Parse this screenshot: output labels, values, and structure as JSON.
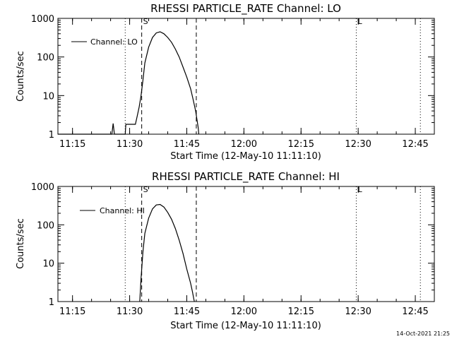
{
  "chart_data": [
    {
      "type": "line",
      "title": "RHESSI PARTICLE_RATE Channel: LO",
      "xlabel": "Start Time (12-May-10 11:11:10)",
      "ylabel": "Counts/sec",
      "yscale": "log",
      "xlim": [
        "11:11:10",
        "12:50:00"
      ],
      "ylim": [
        1,
        1000
      ],
      "xticks": [
        "11:15",
        "11:30",
        "11:45",
        "12:00",
        "12:15",
        "12:30",
        "12:45"
      ],
      "yticks": [
        "1",
        "10",
        "100",
        "1000"
      ],
      "legend": {
        "label": "Channel: LO",
        "placement": "top-left"
      },
      "markers": [
        {
          "label": "S",
          "time": "11:33:10",
          "style": "dashed"
        },
        {
          "label": "",
          "time": "11:47:30",
          "style": "dashed"
        },
        {
          "label": "",
          "time": "11:28:50",
          "style": "dotted"
        },
        {
          "label": "L",
          "time": "12:29:30",
          "style": "dotted"
        },
        {
          "label": "",
          "time": "12:46:20",
          "style": "dotted"
        }
      ],
      "series": [
        {
          "x": [
            "11:11:10",
            "11:25:20",
            "11:25:40",
            "11:26:00",
            "11:26:20",
            "11:28:50",
            "11:29:00",
            "11:31:30",
            "11:32:00",
            "11:32:30",
            "11:33:00",
            "11:33:30",
            "11:34:00",
            "11:35:00",
            "11:36:00",
            "11:37:00",
            "11:38:00",
            "11:39:00",
            "11:40:00",
            "11:41:00",
            "11:42:00",
            "11:43:00",
            "11:44:00",
            "11:45:00",
            "11:46:00",
            "11:46:40",
            "11:47:20",
            "11:48:00",
            "11:48:10"
          ],
          "y": [
            1,
            1,
            1.9,
            1,
            1,
            1,
            1.8,
            1.8,
            3,
            5,
            10,
            25,
            70,
            180,
            320,
            420,
            450,
            400,
            320,
            240,
            160,
            100,
            55,
            30,
            15,
            8,
            4,
            1.5,
            1
          ]
        }
      ]
    },
    {
      "type": "line",
      "title": "RHESSI PARTICLE_RATE Channel: HI",
      "xlabel": "Start Time (12-May-10 11:11:10)",
      "ylabel": "Counts/sec",
      "yscale": "log",
      "xlim": [
        "11:11:10",
        "12:50:00"
      ],
      "ylim": [
        1,
        1000
      ],
      "xticks": [
        "11:15",
        "11:30",
        "11:45",
        "12:00",
        "12:15",
        "12:30",
        "12:45"
      ],
      "yticks": [
        "1",
        "10",
        "100",
        "1000"
      ],
      "legend": {
        "label": "Channel: HI",
        "placement": "top-left"
      },
      "markers": [
        {
          "label": "S",
          "time": "11:33:10",
          "style": "dashed"
        },
        {
          "label": "",
          "time": "11:47:30",
          "style": "dashed"
        },
        {
          "label": "",
          "time": "11:28:50",
          "style": "dotted"
        },
        {
          "label": "L",
          "time": "12:29:30",
          "style": "dotted"
        },
        {
          "label": "",
          "time": "12:46:20",
          "style": "dotted"
        }
      ],
      "series": [
        {
          "x": [
            "11:32:40",
            "11:33:00",
            "11:33:30",
            "11:34:00",
            "11:35:00",
            "11:36:00",
            "11:37:00",
            "11:38:00",
            "11:39:00",
            "11:40:00",
            "11:41:00",
            "11:42:00",
            "11:43:00",
            "11:44:00",
            "11:45:00",
            "11:46:00",
            "11:46:30",
            "11:46:50",
            "11:47:00"
          ],
          "y": [
            1,
            4,
            20,
            60,
            150,
            260,
            330,
            340,
            290,
            210,
            140,
            80,
            40,
            18,
            7,
            3,
            1.8,
            1.2,
            1
          ]
        }
      ]
    }
  ],
  "timestamp": "14-Oct-2021 21:25"
}
